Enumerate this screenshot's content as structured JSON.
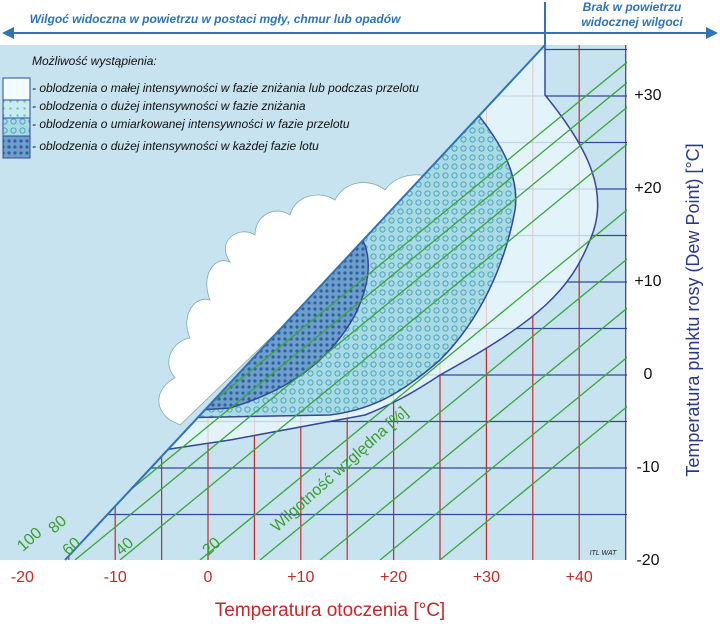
{
  "header": {
    "left": "Wilgoć widoczna w powietrzu w postaci mgły, chmur lub opadów",
    "right": [
      "Brak w powietrzu",
      "widocznej wilgoci"
    ]
  },
  "legend": {
    "title": "Możliwość wystąpienia:",
    "items": [
      "- oblodzenia o małej intensywności w fazie zniżania lub podczas przelotu",
      "- oblodzenia o dużej intensywności w fazie zniżania",
      "- oblodzenia o umiarkowanej intensywności w fazie przelotu",
      "- oblodzenia o dużej intensywności w każdej fazie lotu"
    ]
  },
  "x_axis": {
    "label": "Temperatura otoczenia [°C]",
    "ticks": [
      "-20",
      "-10",
      "0",
      "+10",
      "+20",
      "+30",
      "+40"
    ]
  },
  "y_axis": {
    "label": "Temperatura punktu rosy (Dew Point) [°C]",
    "ticks": [
      "+30",
      "+20",
      "+10",
      "0",
      "-10",
      "-20"
    ]
  },
  "humidity": {
    "label": "Wilgotność względna [%]",
    "ticks": [
      "100",
      "80",
      "60",
      "40",
      "20"
    ]
  },
  "credit": "ITL WAT"
}
